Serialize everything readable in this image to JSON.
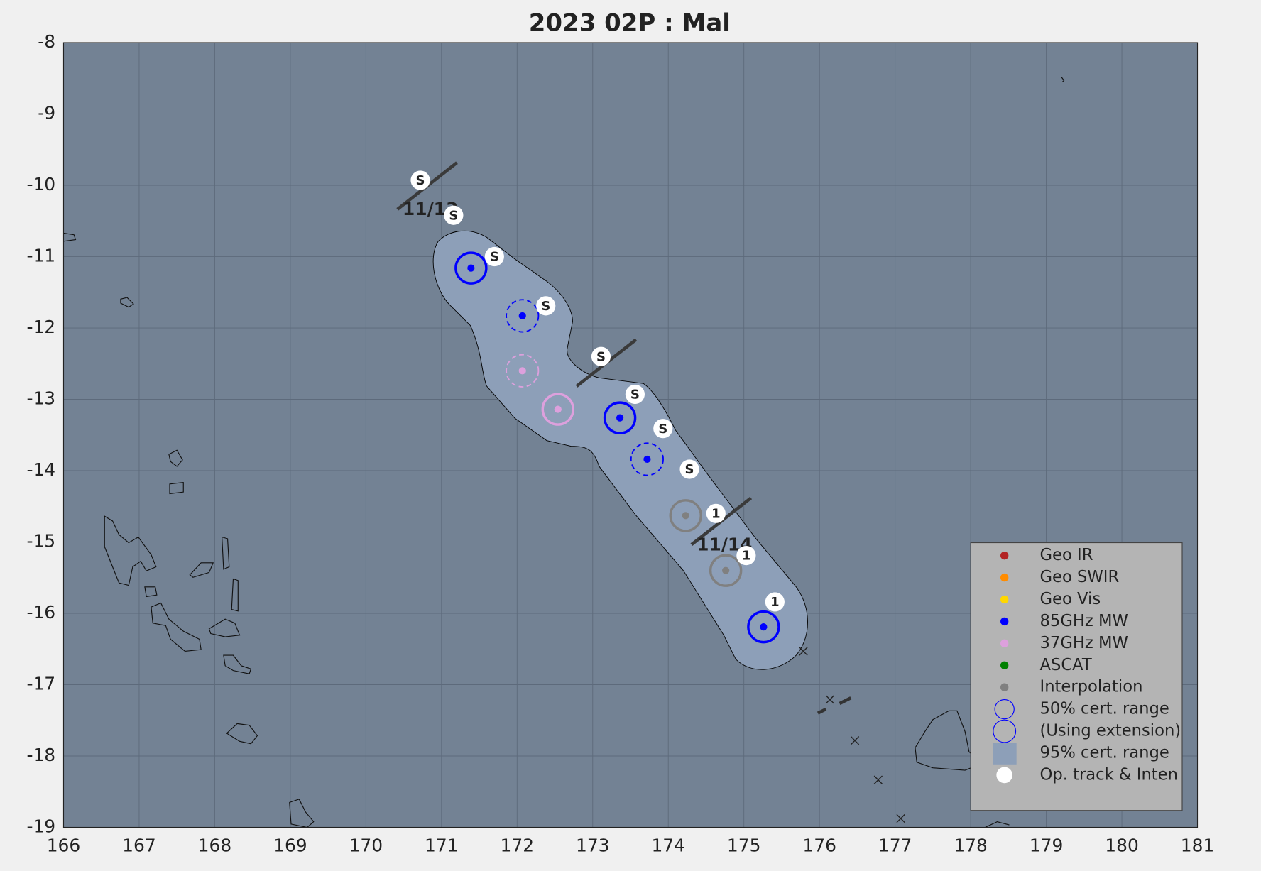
{
  "chart_data": {
    "type": "track",
    "title": "2023  02P :  Mal",
    "xlim": [
      166,
      181
    ],
    "xticks": [
      166,
      167,
      168,
      169,
      170,
      171,
      172,
      173,
      174,
      175,
      176,
      177,
      178,
      179,
      180,
      181
    ],
    "ylim": [
      -19,
      -8
    ],
    "yticks": [
      -8,
      -9,
      -10,
      -11,
      -12,
      -13,
      -14,
      -15,
      -16,
      -17,
      -18,
      -19
    ],
    "grid": true,
    "series": [
      {
        "name": "Geo IR",
        "color": "#b22222",
        "x": [],
        "y": [],
        "extension": []
      },
      {
        "name": "Geo SWIR",
        "color": "#ff8c00",
        "x": [],
        "y": [],
        "extension": []
      },
      {
        "name": "Geo Vis",
        "color": "#ffd700",
        "x": [],
        "y": [],
        "extension": []
      },
      {
        "name": "85GHz MW",
        "color": "#0000ff",
        "x": [
          171.39,
          172.07,
          173.36,
          173.72,
          175.26
        ],
        "y": [
          -11.16,
          -11.83,
          -13.26,
          -13.84,
          -16.19
        ],
        "extension": [
          false,
          true,
          false,
          true,
          false
        ]
      },
      {
        "name": "37GHz MW",
        "color": "#dda0dd",
        "x": [
          172.07,
          172.54
        ],
        "y": [
          -12.6,
          -13.14
        ],
        "extension": [
          true,
          false
        ]
      },
      {
        "name": "ASCAT",
        "color": "#008000",
        "x": [],
        "y": [],
        "extension": []
      },
      {
        "name": "Interpolation",
        "color": "#808080",
        "x": [
          174.23,
          174.76
        ],
        "y": [
          -14.63,
          -15.4
        ],
        "extension": [
          false,
          false
        ]
      }
    ],
    "legend_extra": [
      {
        "name": "50% cert. range",
        "color": "#0000ff"
      },
      {
        "name": "(Using extension)",
        "color": "#0000ff"
      },
      {
        "name": "95% cert. range",
        "color": "#8d9fb8"
      }
    ],
    "op_track": {
      "name": "Op. track & Inten",
      "color": "#ffffff",
      "x": [
        170.72,
        171.16,
        171.7,
        172.38,
        173.11,
        173.56,
        173.93,
        174.28,
        174.63,
        175.03,
        175.41
      ],
      "y": [
        -9.93,
        -10.42,
        -11.0,
        -11.69,
        -12.4,
        -12.93,
        -13.41,
        -13.98,
        -14.6,
        -15.19,
        -15.84
      ],
      "labels": [
        "S",
        "S",
        "S",
        "S",
        "S",
        "S",
        "S",
        "S",
        "1",
        "1",
        "1"
      ]
    },
    "date_marks": [
      {
        "label": "11/13",
        "x": 170.81,
        "y": -10.01
      },
      {
        "label": null,
        "x": 173.18,
        "y": -12.49
      },
      {
        "label": "11/14",
        "x": 174.7,
        "y": -14.71
      }
    ]
  }
}
